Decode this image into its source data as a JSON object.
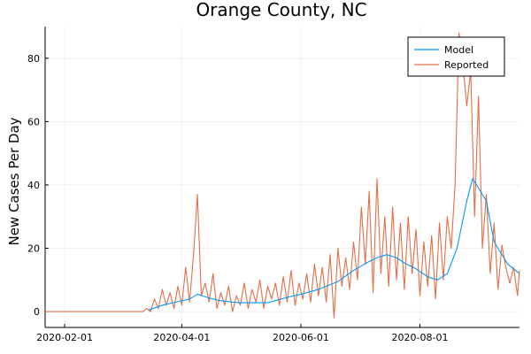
{
  "chart_data": {
    "type": "line",
    "title": "Orange County, NC",
    "xlabel": "",
    "ylabel": "New Cases Per Day",
    "x_ticks": [
      {
        "date": "2020-02-01",
        "label": "2020-02-01"
      },
      {
        "date": "2020-04-01",
        "label": "2020-04-01"
      },
      {
        "date": "2020-06-01",
        "label": "2020-06-01"
      },
      {
        "date": "2020-08-01",
        "label": "2020-08-01"
      }
    ],
    "y_ticks": [
      0,
      20,
      40,
      60,
      80
    ],
    "x_range": [
      "2020-01-22",
      "2020-09-21"
    ],
    "ylim": [
      -5,
      90
    ],
    "grid": true,
    "legend_position": "top-right",
    "series": [
      {
        "name": "Model",
        "color": "#009af9",
        "points": [
          [
            "2020-03-15",
            0.5
          ],
          [
            "2020-03-22",
            2.0
          ],
          [
            "2020-03-29",
            3.0
          ],
          [
            "2020-04-05",
            4.0
          ],
          [
            "2020-04-09",
            5.5
          ],
          [
            "2020-04-14",
            4.5
          ],
          [
            "2020-04-20",
            3.5
          ],
          [
            "2020-04-30",
            2.8
          ],
          [
            "2020-05-15",
            2.8
          ],
          [
            "2020-05-25",
            4.5
          ],
          [
            "2020-06-01",
            5.5
          ],
          [
            "2020-06-10",
            7.0
          ],
          [
            "2020-06-20",
            9.5
          ],
          [
            "2020-06-28",
            13.0
          ],
          [
            "2020-07-05",
            15.5
          ],
          [
            "2020-07-10",
            17.0
          ],
          [
            "2020-07-15",
            18.0
          ],
          [
            "2020-07-20",
            17.0
          ],
          [
            "2020-07-25",
            15.0
          ],
          [
            "2020-07-30",
            13.5
          ],
          [
            "2020-08-05",
            11.0
          ],
          [
            "2020-08-10",
            10.0
          ],
          [
            "2020-08-15",
            12.0
          ],
          [
            "2020-08-20",
            20.0
          ],
          [
            "2020-08-25",
            35.0
          ],
          [
            "2020-08-28",
            42.0
          ],
          [
            "2020-09-01",
            38.0
          ],
          [
            "2020-09-04",
            35.0
          ],
          [
            "2020-09-08",
            22.0
          ],
          [
            "2020-09-15",
            15.0
          ],
          [
            "2020-09-21",
            12.0
          ]
        ]
      },
      {
        "name": "Reported",
        "color": "#e26f46",
        "points": [
          [
            "2020-01-22",
            0
          ],
          [
            "2020-02-01",
            0
          ],
          [
            "2020-02-15",
            0
          ],
          [
            "2020-03-01",
            0
          ],
          [
            "2020-03-12",
            0
          ],
          [
            "2020-03-14",
            1
          ],
          [
            "2020-03-16",
            0
          ],
          [
            "2020-03-18",
            4
          ],
          [
            "2020-03-20",
            1
          ],
          [
            "2020-03-22",
            7
          ],
          [
            "2020-03-24",
            2
          ],
          [
            "2020-03-26",
            6
          ],
          [
            "2020-03-28",
            1
          ],
          [
            "2020-03-30",
            8
          ],
          [
            "2020-04-01",
            2
          ],
          [
            "2020-04-03",
            14
          ],
          [
            "2020-04-05",
            3
          ],
          [
            "2020-04-07",
            18
          ],
          [
            "2020-04-09",
            37
          ],
          [
            "2020-04-11",
            5
          ],
          [
            "2020-04-13",
            9
          ],
          [
            "2020-04-15",
            3
          ],
          [
            "2020-04-17",
            12
          ],
          [
            "2020-04-19",
            1
          ],
          [
            "2020-04-21",
            6
          ],
          [
            "2020-04-23",
            2
          ],
          [
            "2020-04-25",
            8
          ],
          [
            "2020-04-27",
            0
          ],
          [
            "2020-04-29",
            5
          ],
          [
            "2020-05-01",
            2
          ],
          [
            "2020-05-03",
            9
          ],
          [
            "2020-05-05",
            1
          ],
          [
            "2020-05-07",
            7
          ],
          [
            "2020-05-09",
            3
          ],
          [
            "2020-05-11",
            10
          ],
          [
            "2020-05-13",
            1
          ],
          [
            "2020-05-15",
            8
          ],
          [
            "2020-05-17",
            4
          ],
          [
            "2020-05-19",
            9
          ],
          [
            "2020-05-21",
            2
          ],
          [
            "2020-05-23",
            11
          ],
          [
            "2020-05-25",
            3
          ],
          [
            "2020-05-27",
            13
          ],
          [
            "2020-05-29",
            2
          ],
          [
            "2020-05-31",
            9
          ],
          [
            "2020-06-02",
            4
          ],
          [
            "2020-06-04",
            12
          ],
          [
            "2020-06-06",
            3
          ],
          [
            "2020-06-08",
            15
          ],
          [
            "2020-06-10",
            5
          ],
          [
            "2020-06-12",
            14
          ],
          [
            "2020-06-14",
            3
          ],
          [
            "2020-06-16",
            18
          ],
          [
            "2020-06-18",
            -2
          ],
          [
            "2020-06-20",
            20
          ],
          [
            "2020-06-22",
            8
          ],
          [
            "2020-06-24",
            17
          ],
          [
            "2020-06-26",
            7
          ],
          [
            "2020-06-28",
            22
          ],
          [
            "2020-06-30",
            10
          ],
          [
            "2020-07-02",
            33
          ],
          [
            "2020-07-04",
            15
          ],
          [
            "2020-07-06",
            38
          ],
          [
            "2020-07-08",
            6
          ],
          [
            "2020-07-10",
            42
          ],
          [
            "2020-07-12",
            12
          ],
          [
            "2020-07-14",
            30
          ],
          [
            "2020-07-16",
            8
          ],
          [
            "2020-07-18",
            33
          ],
          [
            "2020-07-20",
            10
          ],
          [
            "2020-07-22",
            28
          ],
          [
            "2020-07-24",
            7
          ],
          [
            "2020-07-26",
            30
          ],
          [
            "2020-07-28",
            12
          ],
          [
            "2020-07-30",
            26
          ],
          [
            "2020-08-01",
            5
          ],
          [
            "2020-08-03",
            22
          ],
          [
            "2020-08-05",
            8
          ],
          [
            "2020-08-07",
            24
          ],
          [
            "2020-08-09",
            4
          ],
          [
            "2020-08-11",
            28
          ],
          [
            "2020-08-13",
            10
          ],
          [
            "2020-08-15",
            30
          ],
          [
            "2020-08-17",
            20
          ],
          [
            "2020-08-19",
            40
          ],
          [
            "2020-08-21",
            88
          ],
          [
            "2020-08-23",
            78
          ],
          [
            "2020-08-25",
            65
          ],
          [
            "2020-08-27",
            76
          ],
          [
            "2020-08-29",
            30
          ],
          [
            "2020-08-31",
            68
          ],
          [
            "2020-09-02",
            20
          ],
          [
            "2020-09-04",
            37
          ],
          [
            "2020-09-06",
            12
          ],
          [
            "2020-09-08",
            28
          ],
          [
            "2020-09-10",
            7
          ],
          [
            "2020-09-12",
            21
          ],
          [
            "2020-09-14",
            14
          ],
          [
            "2020-09-16",
            9
          ],
          [
            "2020-09-18",
            14
          ],
          [
            "2020-09-20",
            5
          ],
          [
            "2020-09-21",
            13
          ]
        ]
      }
    ]
  }
}
